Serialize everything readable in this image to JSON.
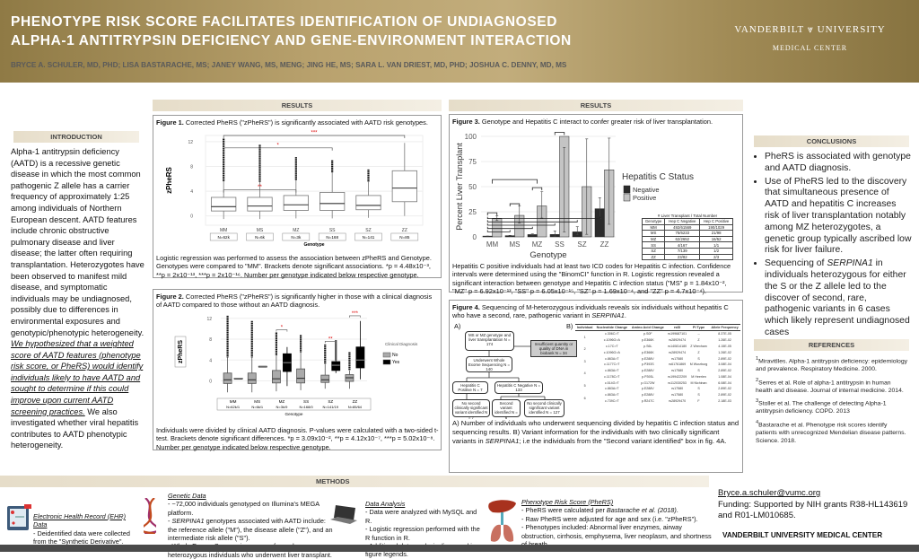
{
  "header": {
    "title_line1": "PHENOTYPE RISK SCORE FACILITATES IDENTIFICATION OF UNDIAGNOSED",
    "title_line2": "ALPHA-1 ANTITRYPSIN DEFICIENCY AND GENE-ENVIRONMENT INTERACTION",
    "authors": "BRYCE A. SCHULER, MD, PHD; LISA BASTARACHE, MS; JANEY WANG, MS, MENG; JING HE, MS; SARA L. VAN DRIEST, MD, PHD; JOSHUA C. DENNY, MD, MS",
    "logo_line1": "VANDERBILT ⩔ UNIVERSITY",
    "logo_line2": "MEDICAL CENTER"
  },
  "introduction": {
    "heading": "INTRODUCTION",
    "text1": "Alpha-1 antitrypsin deficiency (AATD) is a recessive genetic disease in which the most common pathogenic Z allele has a carrier frequency of approximately 1:25 among individuals of Northern European descent. AATD features include chronic obstructive pulmonary disease and liver disease; the latter often requiring transplantation. Heterozygotes have been observed to manifest mild disease, and symptomatic individuals may be undiagnosed, possibly due to differences in environmental exposures and genotypic/phenotypic heterogeneity. ",
    "hypothesis": "We hypothesized that a weighted score of AATD features (phenotype risk score, or PheRS) would identify individuals likely to have AATD and sought to determine if this could improve upon current AATD screening practices.",
    "text2": " We also investigated whether viral hepatitis contributes to AATD phenotypic heterogeneity."
  },
  "results_left": {
    "heading": "RESULTS"
  },
  "results_right": {
    "heading": "RESULTS"
  },
  "figure1": {
    "label": "Figure 1.",
    "title": " Corrected PheRS (\"zPheRS\") is significantly associated with AATD risk genotypes.",
    "caption": "Logistic regression was performed to assess the association between zPheRS and Genotype. Genotypes were compared to \"MM\". Brackets denote significant associations. *p = 4.48x10⁻³, **p = 2x10⁻¹³, ***p = 2x10⁻¹⁶.  Number per genotype indicated below respective genotype."
  },
  "figure2": {
    "label": "Figure 2.",
    "title": "  Corrected PheRS (\"zPheRS\") is significantly higher in those with a clinical diagnosis of AATD compared to those without an AATD diagnosis.",
    "caption": "Individuals were divided by clinical AATD diagnosis. P-values were calculated with a two-sided t-test.  Brackets denote significant differences. *p = 3.09x10⁻², **p = 4.12x10⁻⁷, ***p = 5.02x10⁻⁸. Number per genotype indicated below respective genotype."
  },
  "figure3": {
    "label": "Figure 3.",
    "title": "  Genotype and Hepatitis C interact to confer greater risk of liver transplantation.",
    "caption": "Hepatitis C positive individuals had at least two ICD codes for Hepatitis C infection.  Confidence intervals were determined using the \"BinomCI\" function in R.  Logistic regression revealed a significant interaction between genotype and Hepatitis C infection status (\"MS\" p = 1.84x10⁻², \"MZ\" p = 6.92x10⁻¹³, \"SS\" p = 6.05x10⁻¹⁵, \"SZ\" p = 1.69x10⁻⁴, and \"ZZ\" p = 4.7x10⁻⁴).",
    "table_title": "# Liver Transplant / Total Number",
    "table_headers": [
      "Genotype",
      "Hep C Negative",
      "Hep C Positive"
    ],
    "table_rows": [
      [
        "MM",
        "492/61569",
        "190/1029"
      ],
      [
        "MS",
        "75/6233",
        "21/98"
      ],
      [
        "MZ",
        "62/2652",
        "16/52"
      ],
      [
        "SS",
        "4/167",
        "1/1"
      ],
      [
        "SZ",
        "7/139",
        "1/2"
      ],
      [
        "ZZ",
        "23/82",
        "2/3"
      ]
    ]
  },
  "figure4": {
    "label": "Figure 4.",
    "title": " Sequencing of M-heterozygous individuals reveals six individuals without hepatitis C who have a second, rare, pathogenic variant in ",
    "title_gene": "SERPINA1",
    "title_end": ".",
    "panel_a": "A)",
    "panel_b": "B)",
    "flow": {
      "start": "MS or MZ genotype and liver transplantation N = 174",
      "excluded": "Insufficient quantity or quality of DNA in biobank N = 34",
      "wes": "Underwent Whole Exome Sequencing N = 140",
      "hcv_pos": "Hepatitis C Positive N = 7",
      "hcv_neg": "Hepatitis C Negative N = 133",
      "pos_none": "No second clinically significant variant identified N = 7",
      "neg_second": "Second variant identified N = 6",
      "neg_none": "No second clinically significant variant identified N = 127"
    },
    "table_headers": [
      "Individual",
      "Nucleotide Change",
      "Amino Acid Change",
      "rsID",
      "PI Type",
      "Allele Frequency"
    ],
    "table_rows": [
      {
        "id": "1",
        "variants": [
          [
            "c.306C>T",
            "p.S0F",
            "rs199687101",
            "--",
            "8.37E-05"
          ],
          [
            "c.1096G>A",
            "p.E366K",
            "rs28929474",
            "Z",
            "1.26E-02"
          ]
        ]
      },
      {
        "id": "2",
        "variants": [
          [
            "c.17C>T",
            "p.S6L",
            "rs140814180",
            "Z Wrexham",
            "4.15E-05"
          ],
          [
            "c.1096G>A",
            "p.E366K",
            "rs28929474",
            "Z",
            "1.26E-02"
          ]
        ]
      },
      {
        "id": "3",
        "variants": [
          [
            "c.863A>T",
            "p.E288V",
            "rs17580",
            "S",
            "2.89E-02"
          ],
          [
            "c.1177C>T",
            "p.P393S",
            "rs61761869",
            "M Wurzburg",
            "3.08E-04"
          ]
        ]
      },
      {
        "id": "4",
        "variants": [
          [
            "c.863A>T",
            "p.E288V",
            "rs17580",
            "S",
            "2.89E-02"
          ],
          [
            "c.1178C>T",
            "p.P393L",
            "rs199422209",
            "M Heerlen",
            "1.08E-04"
          ]
        ]
      },
      {
        "id": "5",
        "variants": [
          [
            "c.514G>T",
            "p.G172W",
            "rs112030253",
            "M Nichinan",
            "6.08E-04"
          ],
          [
            "c.863A>T",
            "p.E288V",
            "rs17580",
            "S",
            "2.89E-02"
          ]
        ]
      },
      {
        "id": "6",
        "variants": [
          [
            "c.863A>T",
            "p.E288V",
            "rs17580",
            "S",
            "2.89E-02"
          ],
          [
            "c.739C>T",
            "p.R247C",
            "rs28929470",
            "F",
            "2.18E-03"
          ]
        ]
      }
    ],
    "caption_a": "A) Number of individuals who underwent sequencing divided by hepatitis C infection status and sequencing results. B) Variant information for the individuals with two clinically significant variants in ",
    "caption_gene": "SERPINA1",
    "caption_b": "; i.e the individuals from the \"Second variant identified\" box in fig. 4A."
  },
  "conclusions": {
    "heading": "CONCLUSIONS",
    "items": [
      "PheRS is associated with genotype and AATD diagnosis.",
      "Use of PheRS led to the discovery that simultaneous presence of AATD and hepatitis C increases risk of liver transplantation notably among MZ heterozygotes, a genetic group typically ascribed low risk for liver failure."
    ],
    "item3_pre": "Sequencing of ",
    "item3_gene": "SERPINA1",
    "item3_post": " in individuals heterozygous for either the S or the Z allele led to the discover of second, rare, pathogenic variants in 6 cases which likely represent undiagnosed cases"
  },
  "references": {
    "heading": "REFERENCES",
    "items": [
      {
        "num": "1",
        "text": "Miravitlles.  Alpha-1 antitrypsin deficiency: epidemiology and prevalence.  Respiratory Medicine. 2000."
      },
      {
        "num": "2",
        "text": "Serres et al.  Role of alpha-1 antitrypsin in human health and disease.  Journal of internal medicine. 2014."
      },
      {
        "num": "3",
        "text": "Stoller et al.  The challenge of detecting Alpha-1 antitrypsin deficiency.  COPD. 2013"
      },
      {
        "num": "4",
        "text": "Bastarache et al. Phenotype risk scores identify patients with unrecognized Mendelian disease patterns. Science.  2018."
      }
    ]
  },
  "contact": {
    "email": "Bryce.a.schuler@vumc.org",
    "funding": "Funding: Supported by NIH grants R38-HL143619 and R01-LM010685.",
    "institution": "VANDERBILT UNIVERSITY MEDICAL CENTER"
  },
  "methods": {
    "heading": "METHODS",
    "ehr": {
      "title": "Electronic Health Record (EHR) Data",
      "text": "- Deidentified data were collected from the \"Synthetic Derivative\"."
    },
    "genetic": {
      "title": "Genetic Data",
      "l1": "- ~72,000 individuals genotyped on Illumina's MEGA platform.",
      "l2_gene": "SERPINA1",
      "l2": " genotypes associated with AATD include:  the reference allele (\"M\"), the disease allele (\"Z\"), and an intermediate risk allele (\"S\").",
      "l3": "- Whole Exome Sequencing was performed on heterozygous individuals who underwent liver transplant."
    },
    "analysis": {
      "title": "Data Analysis",
      "l1": "- Data were analyzed with MySQL and R.",
      "l2": "- Logistic regression performed with the R function in R.",
      "l3": "- Additional data analysis discussed in figure legends."
    },
    "pherS": {
      "title": "Phenotype Risk Score (PheRS)",
      "l1": "- PheRS were calculated per ",
      "l1_ref": "Bastarache et al. (2018)",
      "l1_end": ".",
      "l2": "- Raw PheRS were adjusted for age and sex (i.e. \"zPheRS\").",
      "l3": "- Phenotypes included:  Abnormal liver enzymes, airway obstruction, cirrhosis, emphysema, liver neoplasm, and shortness of breath"
    }
  },
  "chart_data": [
    {
      "type": "box",
      "id": "figure1",
      "ylabel": "zPheRS",
      "xlabel": "Genotype",
      "yticks": [
        0,
        4,
        8,
        12
      ],
      "ylim": [
        -1.5,
        13
      ],
      "categories": [
        "MM",
        "MS",
        "MZ",
        "SS",
        "SZ",
        "ZZ"
      ],
      "counts": [
        "N=62k",
        "N=6k",
        "N=3k",
        "N=168",
        "N=141",
        "N=85"
      ],
      "boxes": [
        {
          "low": -0.5,
          "q1": 0.8,
          "median": 1.5,
          "q3": 3.0,
          "high": 5.6,
          "outlier_max": 12.5
        },
        {
          "low": -0.5,
          "q1": 0.8,
          "median": 1.6,
          "q3": 3.0,
          "high": 5.5,
          "outlier_max": 11.5
        },
        {
          "low": -0.4,
          "q1": 0.9,
          "median": 1.8,
          "q3": 3.3,
          "high": 5.8,
          "outlier_max": 9.5
        },
        {
          "low": -0.4,
          "q1": 0.9,
          "median": 2.0,
          "q3": 3.8,
          "high": 7.0,
          "outlier_max": 9.0
        },
        {
          "low": -0.3,
          "q1": 1.0,
          "median": 1.7,
          "q3": 3.3,
          "high": 5.5,
          "outlier_max": 7.5
        },
        {
          "low": 0.0,
          "q1": 2.3,
          "median": 4.5,
          "q3": 7.3,
          "high": 11.8,
          "outlier_max": null
        }
      ],
      "brackets": [
        {
          "from": "MM",
          "to": "MZ",
          "label": "**"
        },
        {
          "from": "MM",
          "to": "SS",
          "label": "*"
        },
        {
          "from": "MM",
          "to": "ZZ",
          "label": "***"
        }
      ]
    },
    {
      "type": "box",
      "id": "figure2",
      "ylabel": "zPheRS",
      "xlabel": "Genotype",
      "yticks": [
        0,
        4,
        8,
        12
      ],
      "ylim": [
        -2.5,
        13
      ],
      "categories": [
        "MM",
        "MS",
        "MZ",
        "SS",
        "SZ",
        "ZZ"
      ],
      "counts": [
        "N=62k/1",
        "N=6k/1",
        "N=3k/9",
        "N=168/0",
        "N=141/19",
        "N=85/64"
      ],
      "legend_title": "Clinical Diagnosis",
      "legend": [
        "No",
        "Yes"
      ],
      "series_colors": {
        "No": "#aaaaaa",
        "Yes": "#000000"
      },
      "boxes_no": [
        {
          "low": -2.2,
          "q1": -0.5,
          "median": 0.2,
          "q3": 1.5,
          "high": 4.5,
          "outlier_max": 12.5
        },
        {
          "low": -2.2,
          "q1": -0.5,
          "median": 0.2,
          "q3": 1.5,
          "high": 4.5,
          "outlier_max": 11.5
        },
        {
          "low": -2.0,
          "q1": -0.4,
          "median": 0.4,
          "q3": 2.0,
          "high": 4.8,
          "outlier_max": 9.3
        },
        {
          "low": -1.8,
          "q1": -0.4,
          "median": 0.5,
          "q3": 2.3,
          "high": 5.5,
          "outlier_max": 8.8
        },
        {
          "low": -1.5,
          "q1": -0.3,
          "median": 0.2,
          "q3": 1.1,
          "high": 3.2,
          "outlier_max": 7.0
        },
        {
          "low": -1.5,
          "q1": -0.1,
          "median": 0.6,
          "q3": 1.2,
          "high": 2.0,
          "outlier_max": 5.5
        }
      ],
      "boxes_yes": [
        {
          "low": 0.5,
          "q1": 0.5,
          "median": 0.5,
          "q3": 0.5,
          "high": 0.5
        },
        {
          "low": 2.8,
          "q1": 2.8,
          "median": 2.8,
          "q3": 2.8,
          "high": 2.8
        },
        {
          "low": -1.0,
          "q1": 1.8,
          "median": 3.5,
          "q3": 5.2,
          "high": 6.5
        },
        null,
        {
          "low": 1.5,
          "q1": 2.0,
          "median": 3.0,
          "q3": 3.7,
          "high": 3.9,
          "outlier_max": 7.8
        },
        {
          "low": 0.3,
          "q1": 2.5,
          "median": 4.0,
          "q3": 6.5,
          "high": 11.5
        }
      ],
      "brackets": [
        {
          "category": "MZ",
          "label": "*"
        },
        {
          "category": "SZ",
          "label": "**"
        },
        {
          "category": "ZZ",
          "label": "***"
        }
      ]
    },
    {
      "type": "bar",
      "id": "figure3",
      "ylabel": "Percent  Liver  Transplant",
      "xlabel": "Genotype",
      "yticks": [
        0,
        25,
        50,
        75,
        100
      ],
      "ylim": [
        0,
        100
      ],
      "categories": [
        "MM",
        "MS",
        "MZ",
        "SS",
        "SZ",
        "ZZ"
      ],
      "legend_title": "Hepatitis  C  Status",
      "series": [
        {
          "name": "Negative",
          "color": "#2b2b2b",
          "values": [
            0.8,
            1.2,
            2.3,
            2.4,
            5.0,
            28.0
          ],
          "ci_low": [
            0.7,
            0.9,
            1.8,
            0.7,
            2.0,
            18.5
          ],
          "ci_high": [
            0.9,
            1.5,
            3.0,
            6.0,
            10.1,
            39.0
          ]
        },
        {
          "name": "Positive",
          "color": "#c4c4c4",
          "values": [
            18.5,
            21.4,
            30.8,
            100,
            50.0,
            66.7
          ],
          "ci_low": [
            16.2,
            13.8,
            18.7,
            5.0,
            2.5,
            12.5
          ],
          "ci_high": [
            20.9,
            30.8,
            45.1,
            89.0,
            97.5,
            98.3
          ]
        }
      ]
    }
  ]
}
